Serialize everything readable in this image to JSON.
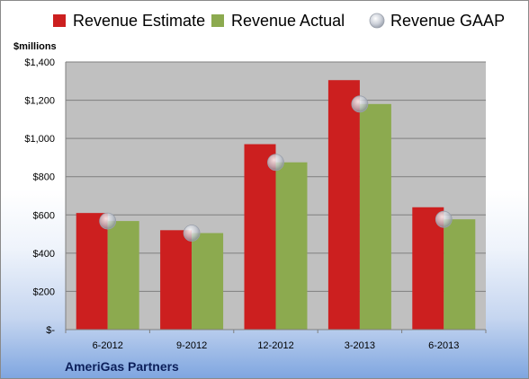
{
  "chart_data": {
    "type": "bar",
    "categories": [
      "6-2012",
      "9-2012",
      "12-2012",
      "3-2013",
      "6-2013"
    ],
    "series": [
      {
        "name": "Revenue Estimate",
        "type": "bar",
        "color": "#cc1f1f",
        "values": [
          610,
          520,
          970,
          1305,
          640
        ]
      },
      {
        "name": "Revenue Actual",
        "type": "bar",
        "color": "#8caa4f",
        "values": [
          568,
          505,
          875,
          1180,
          577
        ]
      },
      {
        "name": "Revenue GAAP",
        "type": "marker",
        "color": "#d0d4dc",
        "values": [
          568,
          505,
          875,
          1180,
          577
        ]
      }
    ],
    "ylabel": "$millions",
    "yticks": [
      "$-",
      "$200",
      "$400",
      "$600",
      "$800",
      "$1,000",
      "$1,200",
      "$1,400"
    ],
    "ytick_values": [
      0,
      200,
      400,
      600,
      800,
      1000,
      1200,
      1400
    ],
    "ylim": [
      0,
      1400
    ],
    "grid": true,
    "legend_position": "top",
    "company": "AmeriGas Partners"
  }
}
